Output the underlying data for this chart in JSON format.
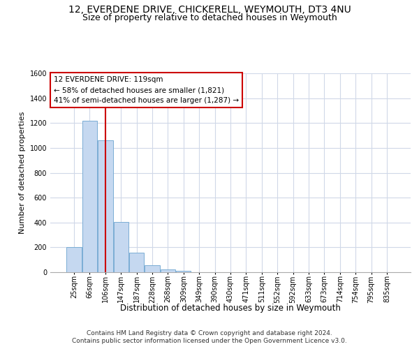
{
  "title": "12, EVERDENE DRIVE, CHICKERELL, WEYMOUTH, DT3 4NU",
  "subtitle": "Size of property relative to detached houses in Weymouth",
  "xlabel": "Distribution of detached houses by size in Weymouth",
  "ylabel": "Number of detached properties",
  "categories": [
    "25sqm",
    "66sqm",
    "106sqm",
    "147sqm",
    "187sqm",
    "228sqm",
    "268sqm",
    "309sqm",
    "349sqm",
    "390sqm",
    "430sqm",
    "471sqm",
    "511sqm",
    "552sqm",
    "592sqm",
    "633sqm",
    "673sqm",
    "714sqm",
    "754sqm",
    "795sqm",
    "835sqm"
  ],
  "values": [
    200,
    1220,
    1060,
    405,
    160,
    55,
    22,
    12,
    0,
    0,
    0,
    0,
    0,
    0,
    0,
    0,
    0,
    0,
    0,
    0,
    0
  ],
  "bar_color": "#c5d8f0",
  "bar_edge_color": "#7aadd4",
  "vline_x_index": 2,
  "vline_color": "#cc0000",
  "annotation_line1": "12 EVERDENE DRIVE: 119sqm",
  "annotation_line2": "← 58% of detached houses are smaller (1,821)",
  "annotation_line3": "41% of semi-detached houses are larger (1,287) →",
  "annotation_box_color": "#ffffff",
  "annotation_box_edge": "#cc0000",
  "ylim": [
    0,
    1600
  ],
  "yticks": [
    0,
    200,
    400,
    600,
    800,
    1000,
    1200,
    1400,
    1600
  ],
  "background_color": "#ffffff",
  "grid_color": "#d0d8e8",
  "footnote_line1": "Contains HM Land Registry data © Crown copyright and database right 2024.",
  "footnote_line2": "Contains public sector information licensed under the Open Government Licence v3.0.",
  "title_fontsize": 10,
  "subtitle_fontsize": 9,
  "xlabel_fontsize": 8.5,
  "ylabel_fontsize": 8,
  "tick_fontsize": 7,
  "annotation_fontsize": 7.5,
  "footnote_fontsize": 6.5
}
